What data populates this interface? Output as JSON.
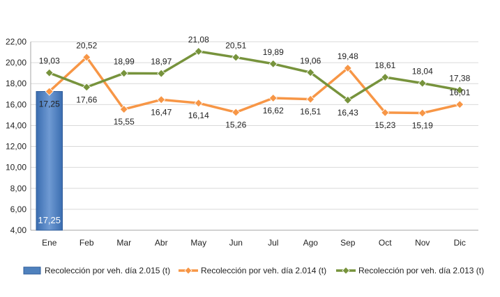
{
  "chart_data": {
    "type": "bar+line",
    "categories": [
      "Ene",
      "Feb",
      "Mar",
      "Abr",
      "May",
      "Jun",
      "Jul",
      "Ago",
      "Sep",
      "Oct",
      "Nov",
      "Dic"
    ],
    "ylim": [
      4,
      22
    ],
    "yticks": [
      "4,00",
      "6,00",
      "8,00",
      "10,00",
      "12,00",
      "14,00",
      "16,00",
      "18,00",
      "20,00",
      "22,00"
    ],
    "grid": "horizontal",
    "legend_position": "bottom",
    "series": [
      {
        "name": "Recolección por veh. día 2.015 (t)",
        "kind": "bar",
        "color": "#4f81bd",
        "values": [
          17.25,
          null,
          null,
          null,
          null,
          null,
          null,
          null,
          null,
          null,
          null,
          null
        ],
        "labels": [
          "17,25",
          "",
          "",
          "",
          "",
          "",
          "",
          "",
          "",
          "",
          "",
          ""
        ]
      },
      {
        "name": "Recolección por veh. día 2.014 (t)",
        "kind": "line",
        "color": "#f79646",
        "values": [
          17.25,
          20.52,
          15.55,
          16.47,
          16.14,
          15.26,
          16.62,
          16.51,
          19.48,
          15.23,
          15.19,
          16.01
        ],
        "labels": [
          "17,25",
          "20,52",
          "15,55",
          "16,47",
          "16,14",
          "15,26",
          "16,62",
          "16,51",
          "19,48",
          "15,23",
          "15,19",
          "16,01"
        ],
        "label_pos": [
          "below",
          "above",
          "below",
          "below",
          "below",
          "below",
          "below",
          "below",
          "above",
          "below",
          "below",
          "above"
        ]
      },
      {
        "name": "Recolección por veh. día 2.013 (t)",
        "kind": "line",
        "color": "#77933c",
        "values": [
          19.03,
          17.66,
          18.99,
          18.97,
          21.08,
          20.51,
          19.89,
          19.06,
          16.43,
          18.61,
          18.04,
          17.38
        ],
        "labels": [
          "19,03",
          "17,66",
          "18,99",
          "18,97",
          "21,08",
          "20,51",
          "19,89",
          "19,06",
          "16,43",
          "18,61",
          "18,04",
          "17,38"
        ],
        "label_pos": [
          "above",
          "below",
          "above",
          "above",
          "above",
          "above",
          "above",
          "above",
          "below",
          "above",
          "above",
          "above"
        ]
      }
    ]
  }
}
